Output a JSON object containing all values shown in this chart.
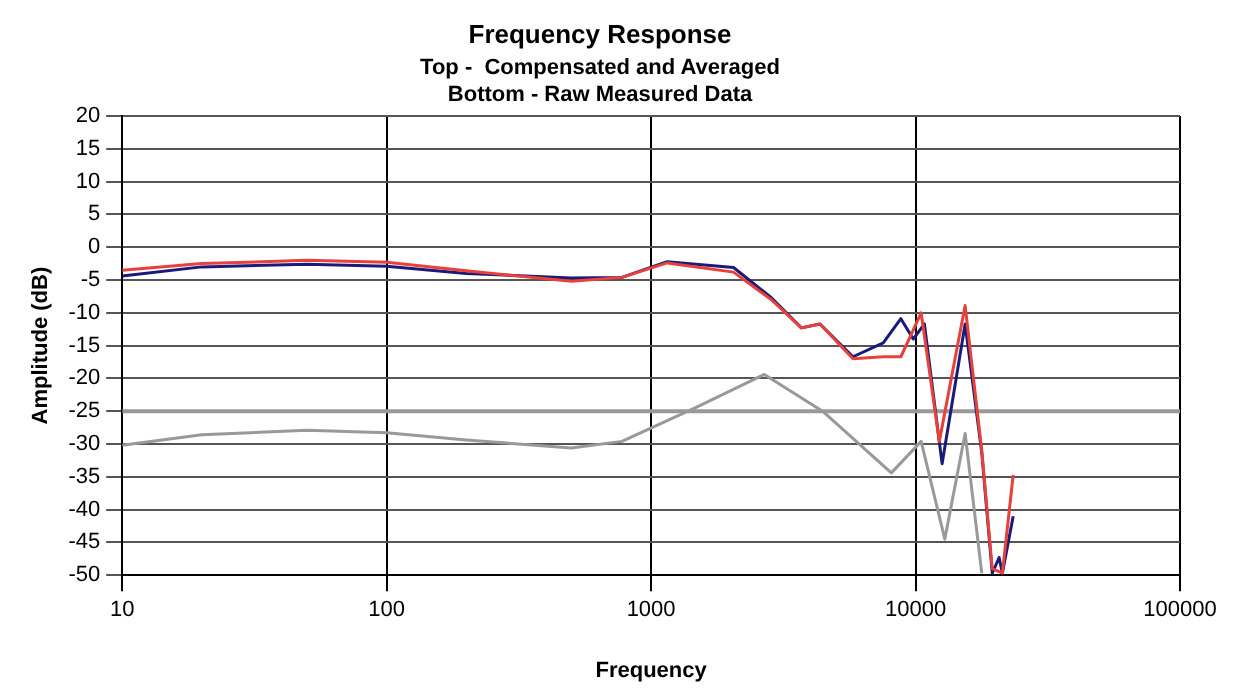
{
  "chart_data": {
    "type": "line",
    "title": "Frequency Response",
    "subtitle": "Top -  Compensated and Averaged\nBottom - Raw Measured Data",
    "xlabel": "Frequency",
    "ylabel": "Amplitude (dB)",
    "log": "x",
    "grid": true,
    "legend": false,
    "marker": "none",
    "line_style": "solid",
    "xlim": [
      10,
      100000
    ],
    "xticks": [
      10,
      100,
      1000,
      10000,
      100000
    ],
    "ylim": [
      -50,
      20
    ],
    "yticks": [
      -50,
      -45,
      -40,
      -35,
      -30,
      -25,
      -20,
      -15,
      -10,
      -5,
      0,
      5,
      10,
      15,
      20
    ],
    "ref_lines": [
      {
        "axis": "y",
        "value": -25,
        "color": "#999999"
      }
    ],
    "series": [
      {
        "color": "#999999",
        "x": [
          10,
          20,
          50,
          100,
          200,
          500,
          776,
          1480,
          2680,
          4450,
          8100,
          10500,
          12900,
          15400,
          17800
        ],
        "values": [
          -30.2,
          -28.6,
          -27.9,
          -28.3,
          -29.4,
          -30.6,
          -29.6,
          -24.4,
          -19.4,
          -25,
          -34.4,
          -29.6,
          -44.5,
          -28.4,
          -49.7
        ]
      },
      {
        "color": "#e8403a",
        "x": [
          10,
          20,
          50,
          100,
          200,
          500,
          776,
          1150,
          2050,
          2850,
          3700,
          4350,
          5800,
          7550,
          8800,
          10500,
          12300,
          15400,
          17800,
          19500,
          21300,
          23400
        ],
        "values": [
          -3.5,
          -2.5,
          -2,
          -2.3,
          -3.6,
          -5.2,
          -4.6,
          -2.4,
          -3.8,
          -8,
          -12.3,
          -11.7,
          -17,
          -16.7,
          -16.7,
          -10,
          -29.6,
          -8.9,
          -31,
          -49,
          -49.7,
          -34.7
        ]
      },
      {
        "color": "#1a1a7a",
        "x": [
          10,
          20,
          50,
          100,
          200,
          500,
          776,
          1150,
          2050,
          2850,
          3700,
          4350,
          5800,
          7550,
          8800,
          9800,
          10800,
          12600,
          15400,
          17800,
          19500,
          20700,
          21300,
          23400
        ],
        "values": [
          -4.4,
          -3,
          -2.6,
          -2.9,
          -4,
          -4.7,
          -4.6,
          -2.2,
          -3.1,
          -7.7,
          -12.3,
          -11.7,
          -16.7,
          -14.6,
          -10.9,
          -14,
          -11.7,
          -33,
          -11.7,
          -31.3,
          -49.7,
          -47.3,
          -49.7,
          -41
        ]
      }
    ]
  }
}
